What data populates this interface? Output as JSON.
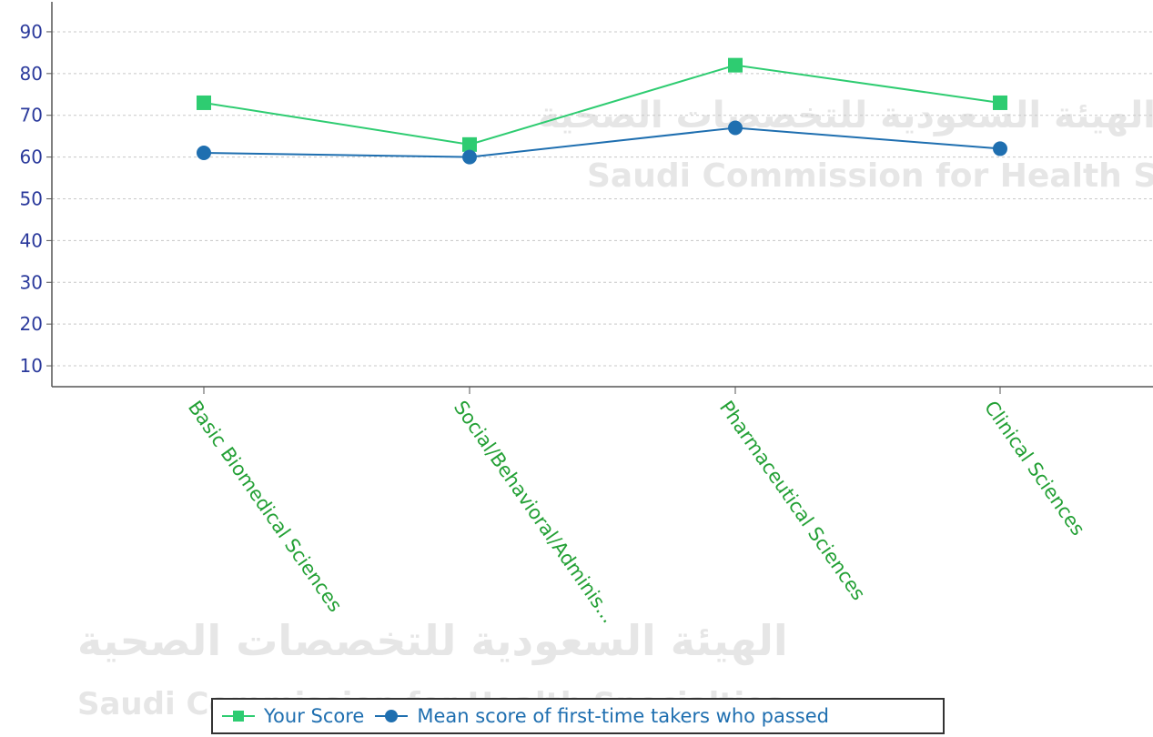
{
  "chart_data": {
    "type": "line",
    "categories": [
      "Basic Biomedical Sciences",
      "Social/Behavioral/Adminis...",
      "Pharmaceutical Sciences",
      "Clinical Sciences"
    ],
    "series": [
      {
        "name": "Your Score",
        "values": [
          73,
          63,
          82,
          73
        ],
        "color": "#2ecc71",
        "marker": "square"
      },
      {
        "name": "Mean score of first-time takers who passed",
        "values": [
          61,
          60,
          67,
          62
        ],
        "color": "#1f6fb0",
        "marker": "circle"
      }
    ],
    "yticks": [
      10,
      20,
      30,
      40,
      50,
      60,
      70,
      80,
      90
    ],
    "ylim": [
      5,
      95
    ],
    "grid": true,
    "legend_position": "bottom"
  },
  "colors": {
    "axis_tick": "#2b3a9c",
    "category_label": "#23a035",
    "grid": "#c8c8c8"
  },
  "watermark": {
    "arabic": "الهيئة السعودية للتخصصات الصحية",
    "english": "Saudi Commission for Health Specialties"
  }
}
